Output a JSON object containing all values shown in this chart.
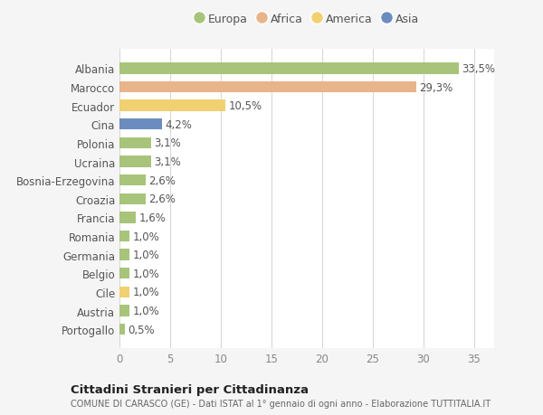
{
  "categories": [
    "Albania",
    "Marocco",
    "Ecuador",
    "Cina",
    "Polonia",
    "Ucraina",
    "Bosnia-Erzegovina",
    "Croazia",
    "Francia",
    "Romania",
    "Germania",
    "Belgio",
    "Cile",
    "Austria",
    "Portogallo"
  ],
  "values": [
    33.5,
    29.3,
    10.5,
    4.2,
    3.1,
    3.1,
    2.6,
    2.6,
    1.6,
    1.0,
    1.0,
    1.0,
    1.0,
    1.0,
    0.5
  ],
  "labels": [
    "33,5%",
    "29,3%",
    "10,5%",
    "4,2%",
    "3,1%",
    "3,1%",
    "2,6%",
    "2,6%",
    "1,6%",
    "1,0%",
    "1,0%",
    "1,0%",
    "1,0%",
    "1,0%",
    "0,5%"
  ],
  "colors": [
    "#a8c47a",
    "#e8b48a",
    "#f0d070",
    "#6b8cbf",
    "#a8c47a",
    "#a8c47a",
    "#a8c47a",
    "#a8c47a",
    "#a8c47a",
    "#a8c47a",
    "#a8c47a",
    "#a8c47a",
    "#f0d070",
    "#a8c47a",
    "#a8c47a"
  ],
  "legend_labels": [
    "Europa",
    "Africa",
    "America",
    "Asia"
  ],
  "legend_colors": [
    "#a8c47a",
    "#e8b48a",
    "#f0d070",
    "#6b8cbf"
  ],
  "xlim": [
    0,
    37
  ],
  "xticks": [
    0,
    5,
    10,
    15,
    20,
    25,
    30,
    35
  ],
  "title_main": "Cittadini Stranieri per Cittadinanza",
  "title_sub": "COMUNE DI CARASCO (GE) - Dati ISTAT al 1° gennaio di ogni anno - Elaborazione TUTTITALIA.IT",
  "background_color": "#f5f5f5",
  "plot_background": "#ffffff",
  "grid_color": "#d8d8d8",
  "bar_height": 0.6,
  "label_fontsize": 8.5,
  "tick_fontsize": 8.5,
  "legend_fontsize": 9
}
